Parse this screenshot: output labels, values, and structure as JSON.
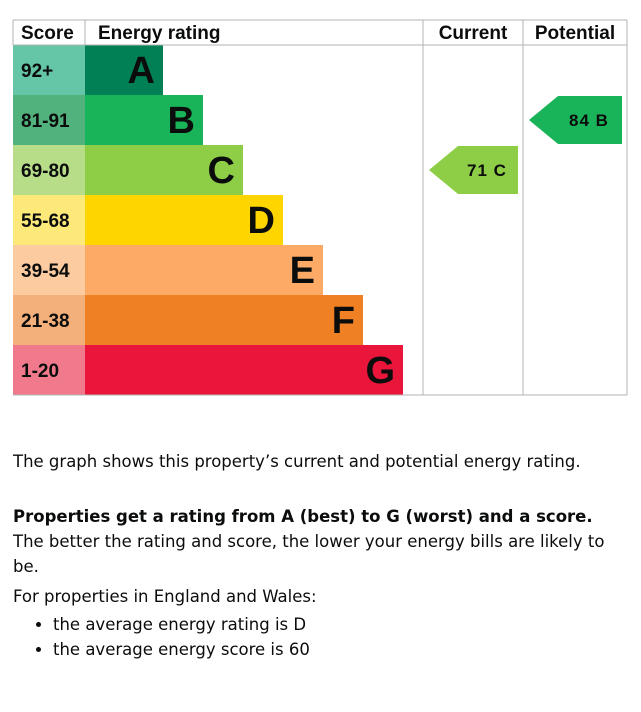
{
  "chart_data": {
    "type": "bar",
    "headers": {
      "score": "Score",
      "rating": "Energy rating",
      "current": "Current",
      "potential": "Potential"
    },
    "bands": [
      {
        "range": "92+",
        "letter": "A",
        "color": "#008054",
        "score_color": "#64c6a6"
      },
      {
        "range": "81-91",
        "letter": "B",
        "color": "#19b459",
        "score_color": "#52b27d"
      },
      {
        "range": "69-80",
        "letter": "C",
        "color": "#8dce46",
        "score_color": "#b7dd89"
      },
      {
        "range": "55-68",
        "letter": "D",
        "color": "#ffd500",
        "score_color": "#fce97a"
      },
      {
        "range": "39-54",
        "letter": "E",
        "color": "#fcaa65",
        "score_color": "#fccba0"
      },
      {
        "range": "21-38",
        "letter": "F",
        "color": "#ef8023",
        "score_color": "#f4b07a"
      },
      {
        "range": "1-20",
        "letter": "G",
        "color": "#e9153b",
        "score_color": "#f07a8c"
      }
    ],
    "current": {
      "score": 71,
      "letter": "C",
      "label": "71 C",
      "color": "#8dce46"
    },
    "potential": {
      "score": 84,
      "letter": "B",
      "label": "84 B",
      "color": "#19b459"
    }
  },
  "text": {
    "graph_description": "The graph shows this property’s current and potential energy rating.",
    "rating_bold": "Properties get a rating from A (best) to G (worst) and a score.",
    "rating_rest": " The better the rating and score, the lower your energy bills are likely to be.",
    "region_intro": "For properties in England and Wales:",
    "averages": [
      "the average energy rating is D",
      "the average energy score is 60"
    ]
  }
}
